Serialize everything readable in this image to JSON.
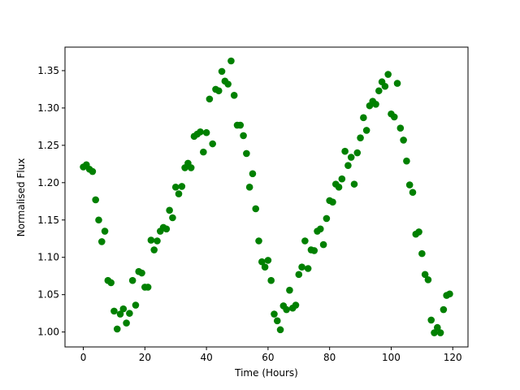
{
  "chart_data": {
    "type": "scatter",
    "xlabel": "Time (Hours)",
    "ylabel": "Normalised Flux",
    "color": "#008000",
    "x": [
      0,
      1,
      2,
      3,
      4,
      5,
      6,
      7,
      8,
      9,
      10,
      11,
      12,
      13,
      14,
      15,
      16,
      17,
      18,
      19,
      20,
      21,
      22,
      23,
      24,
      25,
      26,
      27,
      28,
      29,
      30,
      31,
      32,
      33,
      34,
      35,
      36,
      37,
      38,
      39,
      40,
      41,
      42,
      43,
      44,
      45,
      46,
      47,
      48,
      49,
      50,
      51,
      52,
      53,
      54,
      55,
      56,
      57,
      58,
      59,
      60,
      61,
      62,
      63,
      64,
      65,
      66,
      67,
      68,
      69,
      70,
      71,
      72,
      73,
      74,
      75,
      76,
      77,
      78,
      79,
      80,
      81,
      82,
      83,
      84,
      85,
      86,
      87,
      88,
      89,
      90,
      91,
      92,
      93,
      94,
      95,
      96,
      97,
      98,
      99,
      100,
      101,
      102,
      103,
      104,
      105,
      106,
      107,
      108,
      109,
      110,
      111,
      112,
      113,
      114,
      115,
      116,
      117,
      118,
      119
    ],
    "values": [
      1.221,
      1.224,
      1.218,
      1.215,
      1.177,
      1.15,
      1.121,
      1.135,
      1.069,
      1.066,
      1.028,
      1.004,
      1.024,
      1.031,
      1.012,
      1.025,
      1.069,
      1.036,
      1.081,
      1.079,
      1.06,
      1.06,
      1.123,
      1.11,
      1.122,
      1.135,
      1.14,
      1.138,
      1.163,
      1.153,
      1.194,
      1.185,
      1.195,
      1.22,
      1.226,
      1.22,
      1.262,
      1.265,
      1.268,
      1.241,
      1.267,
      1.312,
      1.252,
      1.325,
      1.323,
      1.349,
      1.336,
      1.332,
      1.363,
      1.317,
      1.277,
      1.277,
      1.263,
      1.239,
      1.194,
      1.212,
      1.165,
      1.122,
      1.094,
      1.087,
      1.096,
      1.069,
      1.024,
      1.015,
      1.003,
      1.035,
      1.03,
      1.056,
      1.032,
      1.036,
      1.077,
      1.087,
      1.122,
      1.085,
      1.11,
      1.109,
      1.135,
      1.138,
      1.117,
      1.152,
      1.176,
      1.174,
      1.198,
      1.194,
      1.205,
      1.242,
      1.223,
      1.234,
      1.198,
      1.24,
      1.26,
      1.287,
      1.27,
      1.303,
      1.309,
      1.305,
      1.323,
      1.335,
      1.329,
      1.345,
      1.292,
      1.288,
      1.333,
      1.273,
      1.257,
      1.229,
      1.197,
      1.187,
      1.131,
      1.134,
      1.105,
      1.077,
      1.07,
      1.016,
      0.999,
      1.006,
      0.999,
      1.03,
      1.049,
      1.051
    ],
    "xlim": [
      -5.95,
      124.95
    ],
    "ylim": [
      0.98,
      1.3815
    ],
    "xticks": [
      0,
      20,
      40,
      60,
      80,
      100,
      120
    ],
    "yticks": [
      {
        "value": 1.0,
        "label": "1.00"
      },
      {
        "value": 1.05,
        "label": "1.05"
      },
      {
        "value": 1.1,
        "label": "1.10"
      },
      {
        "value": 1.15,
        "label": "1.15"
      },
      {
        "value": 1.2,
        "label": "1.20"
      },
      {
        "value": 1.25,
        "label": "1.25"
      },
      {
        "value": 1.3,
        "label": "1.30"
      },
      {
        "value": 1.35,
        "label": "1.35"
      }
    ]
  }
}
